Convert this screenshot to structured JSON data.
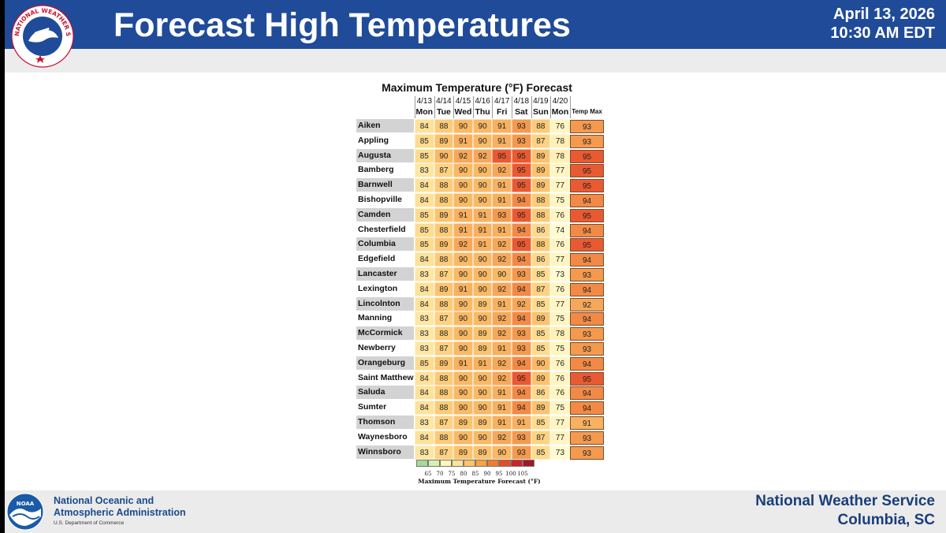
{
  "header": {
    "title": "Forecast High Temperatures",
    "date": "April 13, 2026",
    "time": "10:30 AM EDT",
    "logo_text": "NATIONAL WEATHER SERVICE"
  },
  "colors": {
    "header_bg": "#1f4b99",
    "footer_text": "#1a3e7a"
  },
  "table": {
    "title": "Maximum Temperature (°F) Forecast",
    "dates": [
      "4/13",
      "4/14",
      "4/15",
      "4/16",
      "4/17",
      "4/18",
      "4/19",
      "4/20"
    ],
    "days": [
      "Mon",
      "Tue",
      "Wed",
      "Thu",
      "Fri",
      "Sat",
      "Sun",
      "Mon"
    ],
    "tempmax_label": "Temp Max",
    "rows": [
      {
        "city": "Aiken",
        "values": [
          84,
          88,
          90,
          90,
          91,
          93,
          88,
          76
        ],
        "max": 93
      },
      {
        "city": "Appling",
        "values": [
          85,
          89,
          91,
          90,
          91,
          93,
          87,
          78
        ],
        "max": 93
      },
      {
        "city": "Augusta",
        "values": [
          85,
          90,
          92,
          92,
          95,
          95,
          89,
          78
        ],
        "max": 95
      },
      {
        "city": "Bamberg",
        "values": [
          83,
          87,
          90,
          90,
          92,
          95,
          89,
          77
        ],
        "max": 95
      },
      {
        "city": "Barnwell",
        "values": [
          84,
          88,
          90,
          90,
          91,
          95,
          89,
          77
        ],
        "max": 95
      },
      {
        "city": "Bishopville",
        "values": [
          84,
          88,
          90,
          90,
          91,
          94,
          88,
          75
        ],
        "max": 94
      },
      {
        "city": "Camden",
        "values": [
          85,
          89,
          91,
          91,
          93,
          95,
          88,
          76
        ],
        "max": 95
      },
      {
        "city": "Chesterfield",
        "values": [
          85,
          88,
          91,
          91,
          91,
          94,
          86,
          74
        ],
        "max": 94
      },
      {
        "city": "Columbia",
        "values": [
          85,
          89,
          92,
          91,
          92,
          95,
          88,
          76
        ],
        "max": 95
      },
      {
        "city": "Edgefield",
        "values": [
          84,
          88,
          90,
          90,
          92,
          94,
          86,
          77
        ],
        "max": 94
      },
      {
        "city": "Lancaster",
        "values": [
          83,
          87,
          90,
          90,
          90,
          93,
          85,
          73
        ],
        "max": 93
      },
      {
        "city": "Lexington",
        "values": [
          84,
          89,
          91,
          90,
          92,
          94,
          87,
          76
        ],
        "max": 94
      },
      {
        "city": "Lincolnton",
        "values": [
          84,
          88,
          90,
          89,
          91,
          92,
          85,
          77
        ],
        "max": 92
      },
      {
        "city": "Manning",
        "values": [
          83,
          87,
          90,
          90,
          92,
          94,
          89,
          75
        ],
        "max": 94
      },
      {
        "city": "McCormick",
        "values": [
          83,
          88,
          90,
          89,
          92,
          93,
          85,
          78
        ],
        "max": 93
      },
      {
        "city": "Newberry",
        "values": [
          83,
          87,
          90,
          89,
          91,
          93,
          85,
          75
        ],
        "max": 93
      },
      {
        "city": "Orangeburg",
        "values": [
          85,
          89,
          91,
          91,
          92,
          94,
          90,
          76
        ],
        "max": 94
      },
      {
        "city": "Saint Matthews",
        "values": [
          84,
          88,
          90,
          90,
          92,
          95,
          89,
          76
        ],
        "max": 95
      },
      {
        "city": "Saluda",
        "values": [
          84,
          88,
          90,
          90,
          91,
          94,
          86,
          76
        ],
        "max": 94
      },
      {
        "city": "Sumter",
        "values": [
          84,
          88,
          90,
          90,
          91,
          94,
          89,
          75
        ],
        "max": 94
      },
      {
        "city": "Thomson",
        "values": [
          83,
          87,
          89,
          89,
          91,
          91,
          85,
          77
        ],
        "max": 91
      },
      {
        "city": "Waynesboro",
        "values": [
          84,
          88,
          90,
          90,
          92,
          93,
          87,
          77
        ],
        "max": 93
      },
      {
        "city": "Winnsboro",
        "values": [
          83,
          87,
          89,
          89,
          90,
          93,
          85,
          73
        ],
        "max": 93
      }
    ]
  },
  "legend": {
    "ticks": [
      "65",
      "70",
      "75",
      "80",
      "85",
      "90",
      "95",
      "100",
      "105"
    ],
    "swatch_colors": [
      "#a6d99a",
      "#d7efb4",
      "#fdf7b8",
      "#fde29a",
      "#fbc56a",
      "#f9a23c",
      "#f57a2e",
      "#e84a26",
      "#c9252a",
      "#a01828"
    ],
    "title": "Maximum Temperature Forecast (°F)"
  },
  "footer": {
    "noaa_line1": "National Oceanic and",
    "noaa_line2": "Atmospheric Administration",
    "noaa_line3": "U.S. Department of Commerce",
    "nws_line1": "National Weather Service",
    "nws_line2": "Columbia, SC",
    "noaa_logo_text": "NOAA"
  }
}
